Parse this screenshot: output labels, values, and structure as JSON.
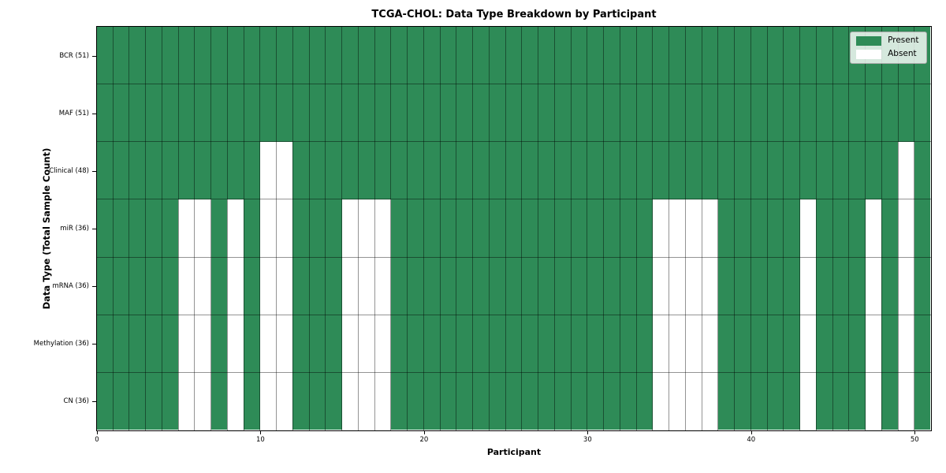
{
  "chart_data": {
    "type": "heatmap",
    "title": "TCGA-CHOL: Data Type Breakdown by Participant",
    "xlabel": "Participant",
    "ylabel": "Data Type (Total Sample Count)",
    "n_participants": 51,
    "x_ticks": [
      0,
      10,
      20,
      30,
      40,
      50
    ],
    "legend": {
      "present": "Present",
      "absent": "Absent",
      "position": "upper right"
    },
    "colors": {
      "present": "#2e8b57",
      "absent": "#ffffff",
      "gridline": "rgba(0,0,0,0.42)",
      "legend_border": "#a9a9a9"
    },
    "rows": [
      {
        "label": "BCR (51)",
        "data_type": "BCR",
        "present_count": 51,
        "absent_participants": []
      },
      {
        "label": "MAF (51)",
        "data_type": "MAF",
        "present_count": 51,
        "absent_participants": []
      },
      {
        "label": "Clinical (48)",
        "data_type": "Clinical",
        "present_count": 48,
        "absent_participants": [
          10,
          11,
          49
        ]
      },
      {
        "label": "miR (36)",
        "data_type": "miR",
        "present_count": 36,
        "absent_participants": [
          5,
          6,
          8,
          10,
          11,
          15,
          16,
          17,
          34,
          35,
          36,
          37,
          43,
          47,
          49
        ]
      },
      {
        "label": "mRNA (36)",
        "data_type": "mRNA",
        "present_count": 36,
        "absent_participants": [
          5,
          6,
          8,
          10,
          11,
          15,
          16,
          17,
          34,
          35,
          36,
          37,
          43,
          47,
          49
        ]
      },
      {
        "label": "Methylation (36)",
        "data_type": "Methylation",
        "present_count": 36,
        "absent_participants": [
          5,
          6,
          8,
          10,
          11,
          15,
          16,
          17,
          34,
          35,
          36,
          37,
          43,
          47,
          49
        ]
      },
      {
        "label": "CN (36)",
        "data_type": "CN",
        "present_count": 36,
        "absent_participants": [
          5,
          6,
          8,
          10,
          11,
          15,
          16,
          17,
          34,
          35,
          36,
          37,
          43,
          47,
          49
        ]
      }
    ]
  }
}
